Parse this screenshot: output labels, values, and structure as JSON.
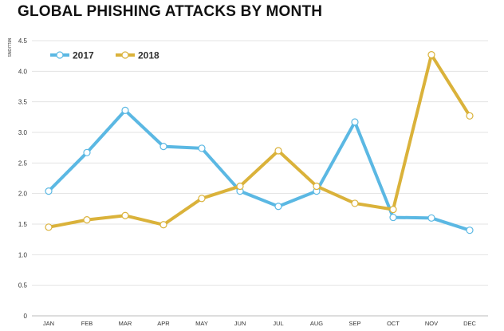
{
  "chart_data": {
    "type": "line",
    "title": "GLOBAL PHISHING ATTACKS BY MONTH",
    "ylabel": "MILLIONS",
    "xlabel": "",
    "categories": [
      "JAN",
      "FEB",
      "MAR",
      "APR",
      "MAY",
      "JUN",
      "JUL",
      "AUG",
      "SEP",
      "OCT",
      "NOV",
      "DEC"
    ],
    "ylim": [
      0,
      4.5
    ],
    "yticks": [
      "0",
      "0.5",
      "1.0",
      "1.5",
      "2.0",
      "2.5",
      "3.0",
      "3.5",
      "4.0",
      "4.5"
    ],
    "grid": true,
    "legend": "top-left",
    "series": [
      {
        "name": "2017",
        "color": "#5bb8e3",
        "values": [
          2.04,
          2.67,
          3.36,
          2.77,
          2.74,
          2.04,
          1.79,
          2.04,
          3.17,
          1.61,
          1.6,
          1.4
        ]
      },
      {
        "name": "2018",
        "color": "#dab23a",
        "values": [
          1.45,
          1.57,
          1.64,
          1.49,
          1.92,
          2.12,
          2.7,
          2.12,
          1.84,
          1.74,
          4.27,
          3.27
        ]
      }
    ]
  }
}
